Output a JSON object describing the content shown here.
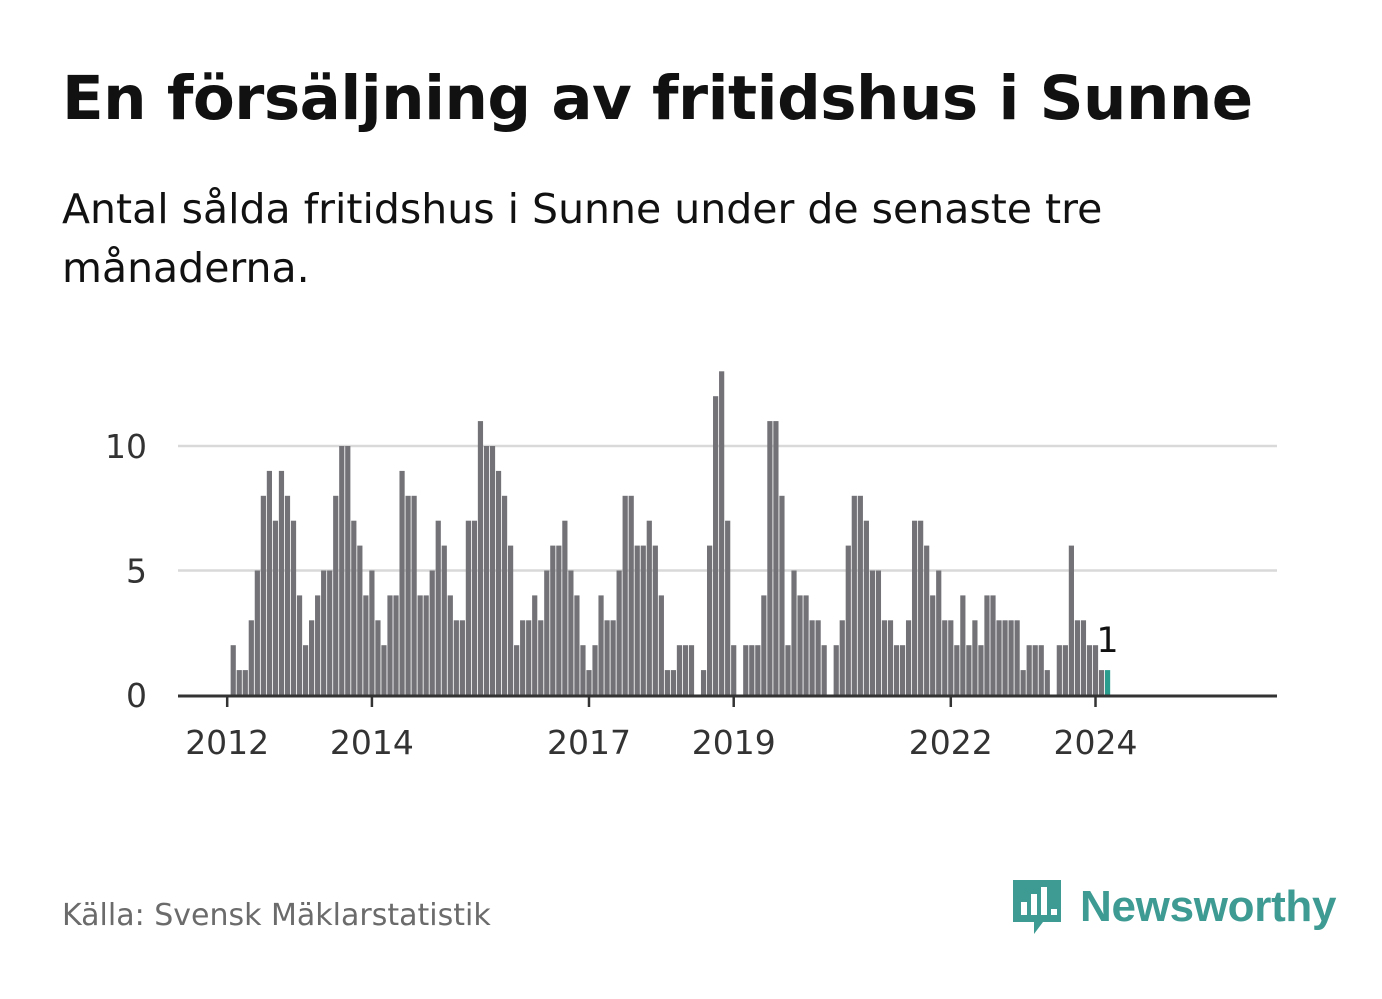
{
  "header": {
    "title": "En försäljning av fritidshus i Sunne",
    "subtitle": "Antal sålda fritidshus i Sunne under de senaste tre månaderna."
  },
  "footer": {
    "source": "Källa: Svensk Mäklarstatistik",
    "brand": "Newsworthy",
    "brand_icon": "newsworthy-logo-icon"
  },
  "colors": {
    "bar": "#737277",
    "highlight": "#2a9d8f",
    "grid": "#d9d9d9",
    "axis": "#333333",
    "brand": "#3d9b93"
  },
  "chart_data": {
    "type": "bar",
    "x_start": "2011-10",
    "x_unit": "month",
    "values": [
      0,
      0,
      0,
      0,
      2,
      1,
      1,
      3,
      5,
      8,
      9,
      7,
      9,
      8,
      7,
      4,
      2,
      3,
      4,
      5,
      5,
      8,
      10,
      10,
      7,
      6,
      4,
      5,
      3,
      2,
      4,
      4,
      9,
      8,
      8,
      4,
      4,
      5,
      7,
      6,
      4,
      3,
      3,
      7,
      7,
      11,
      10,
      10,
      9,
      8,
      6,
      2,
      3,
      3,
      4,
      3,
      5,
      6,
      6,
      7,
      5,
      4,
      2,
      1,
      2,
      4,
      3,
      3,
      5,
      8,
      8,
      6,
      6,
      7,
      6,
      4,
      1,
      1,
      2,
      2,
      2,
      0,
      1,
      6,
      12,
      13,
      7,
      2,
      0,
      2,
      2,
      2,
      4,
      11,
      11,
      8,
      2,
      5,
      4,
      4,
      3,
      3,
      2,
      0,
      2,
      3,
      6,
      8,
      8,
      7,
      5,
      5,
      3,
      3,
      2,
      2,
      3,
      7,
      7,
      6,
      4,
      5,
      3,
      3,
      2,
      4,
      2,
      3,
      2,
      4,
      4,
      3,
      3,
      3,
      3,
      1,
      2,
      2,
      2,
      1,
      0,
      2,
      2,
      6,
      3,
      3,
      2,
      2,
      1,
      1
    ],
    "highlight_last": true,
    "last_label": "1",
    "xticks": [
      "2012",
      "2014",
      "2017",
      "2019",
      "2022",
      "2024"
    ],
    "xtick_months": [
      "2012-01",
      "2014-01",
      "2017-01",
      "2019-01",
      "2022-01",
      "2024-01"
    ],
    "yticks": [
      "0",
      "5",
      "10"
    ],
    "ylim": [
      0,
      13
    ],
    "grid": true
  }
}
